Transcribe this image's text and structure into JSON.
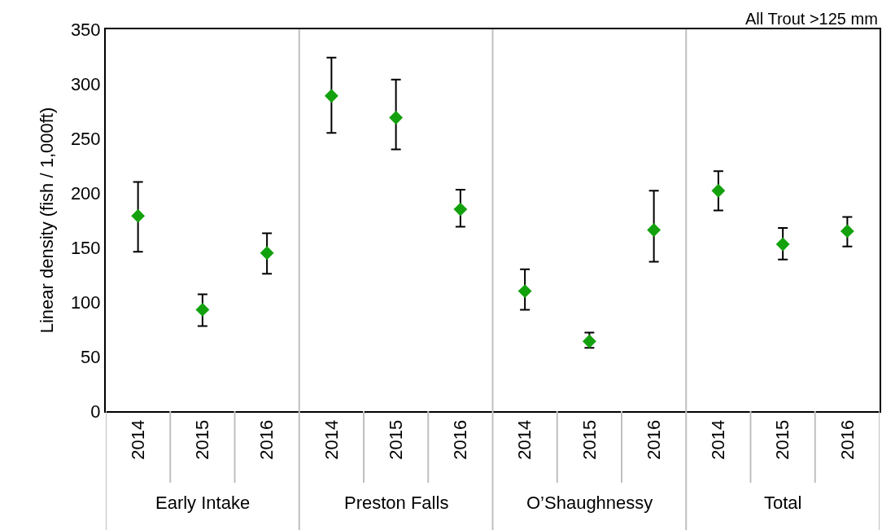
{
  "chart_data": {
    "type": "scatter",
    "title": "All Trout >125 mm",
    "ylabel": "Linear density (fish / 1,000ft)",
    "categories": [
      "2014",
      "2015",
      "2016",
      "2014",
      "2015",
      "2016",
      "2014",
      "2015",
      "2016",
      "2014",
      "2015",
      "2016"
    ],
    "values": [
      179,
      93,
      145,
      289,
      269,
      185,
      110,
      64,
      166,
      202,
      153,
      165
    ],
    "errors": [
      [
        146,
        210
      ],
      [
        78,
        107
      ],
      [
        126,
        163
      ],
      [
        255,
        324
      ],
      [
        240,
        304
      ],
      [
        169,
        203
      ],
      [
        93,
        130
      ],
      [
        58,
        72
      ],
      [
        137,
        202
      ],
      [
        184,
        220
      ],
      [
        139,
        168
      ],
      [
        151,
        178
      ]
    ],
    "color": "#13a10e",
    "marker": "diamond",
    "ylim": [
      0,
      350
    ],
    "yticks": [
      0,
      50,
      100,
      150,
      200,
      250,
      300,
      350
    ],
    "legend": false,
    "annotations": [
      "Early Intake",
      "Preston Falls",
      "O’Shaughnessy",
      "Total"
    ]
  }
}
